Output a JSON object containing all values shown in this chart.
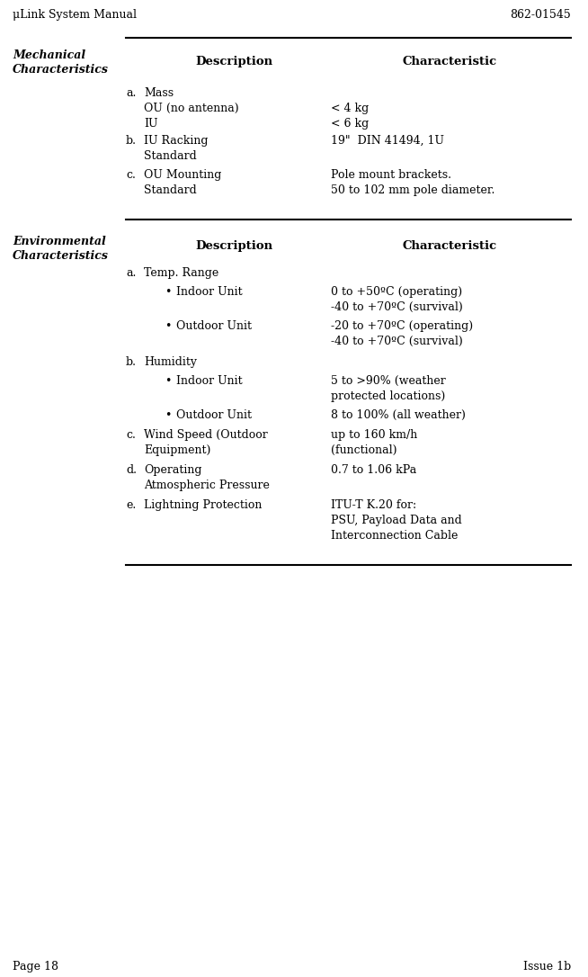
{
  "header_left": "μLink System Manual",
  "header_right": "862-01545",
  "footer_left": "Page 18",
  "footer_right": "Issue 1b",
  "bg_color": "#ffffff",
  "text_color": "#000000",
  "section1_label": "Mechanical\nCharacteristics",
  "section2_label": "Environmental\nCharacteristics",
  "col_desc_header": "Description",
  "col_char_header": "Characteristic",
  "line_color": "#000000"
}
